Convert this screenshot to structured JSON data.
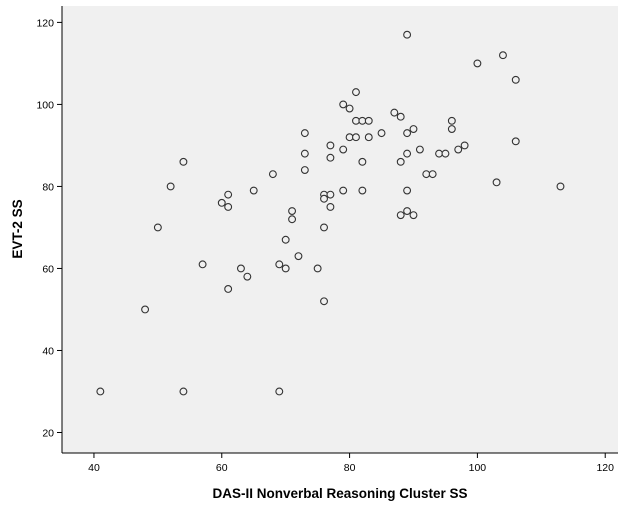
{
  "colors": {
    "plot_background": "#f0f0f0",
    "marker_stroke": "#333333",
    "marker_fill": "#f0f0f0",
    "axis": "#000000"
  },
  "chart_data": {
    "type": "scatter",
    "title": "",
    "xlabel": "DAS-II Nonverbal Reasoning Cluster SS",
    "ylabel": "EVT-2 SS",
    "xlim": [
      35,
      122
    ],
    "ylim": [
      15,
      124
    ],
    "xticks": [
      40,
      60,
      80,
      100,
      120
    ],
    "yticks": [
      20,
      40,
      60,
      80,
      100,
      120
    ],
    "grid": false,
    "legend": "none",
    "marker": "open-circle",
    "points": [
      {
        "x": 41,
        "y": 30
      },
      {
        "x": 48,
        "y": 50
      },
      {
        "x": 50,
        "y": 70
      },
      {
        "x": 52,
        "y": 80
      },
      {
        "x": 54,
        "y": 86
      },
      {
        "x": 54,
        "y": 30
      },
      {
        "x": 57,
        "y": 61
      },
      {
        "x": 60,
        "y": 76
      },
      {
        "x": 61,
        "y": 78
      },
      {
        "x": 61,
        "y": 75
      },
      {
        "x": 61,
        "y": 55
      },
      {
        "x": 63,
        "y": 60
      },
      {
        "x": 64,
        "y": 58
      },
      {
        "x": 65,
        "y": 79
      },
      {
        "x": 68,
        "y": 83
      },
      {
        "x": 69,
        "y": 61
      },
      {
        "x": 69,
        "y": 30
      },
      {
        "x": 70,
        "y": 67
      },
      {
        "x": 70,
        "y": 60
      },
      {
        "x": 71,
        "y": 74
      },
      {
        "x": 71,
        "y": 72
      },
      {
        "x": 72,
        "y": 63
      },
      {
        "x": 73,
        "y": 93
      },
      {
        "x": 73,
        "y": 88
      },
      {
        "x": 73,
        "y": 84
      },
      {
        "x": 75,
        "y": 60
      },
      {
        "x": 76,
        "y": 78
      },
      {
        "x": 76,
        "y": 77
      },
      {
        "x": 76,
        "y": 70
      },
      {
        "x": 76,
        "y": 52
      },
      {
        "x": 77,
        "y": 90
      },
      {
        "x": 77,
        "y": 87
      },
      {
        "x": 77,
        "y": 78
      },
      {
        "x": 77,
        "y": 75
      },
      {
        "x": 79,
        "y": 100
      },
      {
        "x": 79,
        "y": 89
      },
      {
        "x": 79,
        "y": 79
      },
      {
        "x": 80,
        "y": 99
      },
      {
        "x": 80,
        "y": 92
      },
      {
        "x": 81,
        "y": 103
      },
      {
        "x": 81,
        "y": 96
      },
      {
        "x": 81,
        "y": 92
      },
      {
        "x": 82,
        "y": 96
      },
      {
        "x": 82,
        "y": 86
      },
      {
        "x": 82,
        "y": 79
      },
      {
        "x": 83,
        "y": 96
      },
      {
        "x": 83,
        "y": 92
      },
      {
        "x": 85,
        "y": 93
      },
      {
        "x": 87,
        "y": 98
      },
      {
        "x": 88,
        "y": 97
      },
      {
        "x": 88,
        "y": 86
      },
      {
        "x": 88,
        "y": 73
      },
      {
        "x": 89,
        "y": 117
      },
      {
        "x": 89,
        "y": 93
      },
      {
        "x": 89,
        "y": 88
      },
      {
        "x": 89,
        "y": 79
      },
      {
        "x": 89,
        "y": 74
      },
      {
        "x": 90,
        "y": 94
      },
      {
        "x": 90,
        "y": 73
      },
      {
        "x": 91,
        "y": 89
      },
      {
        "x": 92,
        "y": 83
      },
      {
        "x": 93,
        "y": 83
      },
      {
        "x": 94,
        "y": 88
      },
      {
        "x": 95,
        "y": 88
      },
      {
        "x": 96,
        "y": 96
      },
      {
        "x": 96,
        "y": 94
      },
      {
        "x": 97,
        "y": 89
      },
      {
        "x": 98,
        "y": 90
      },
      {
        "x": 100,
        "y": 110
      },
      {
        "x": 103,
        "y": 81
      },
      {
        "x": 104,
        "y": 112
      },
      {
        "x": 106,
        "y": 106
      },
      {
        "x": 106,
        "y": 91
      },
      {
        "x": 113,
        "y": 80
      }
    ]
  }
}
